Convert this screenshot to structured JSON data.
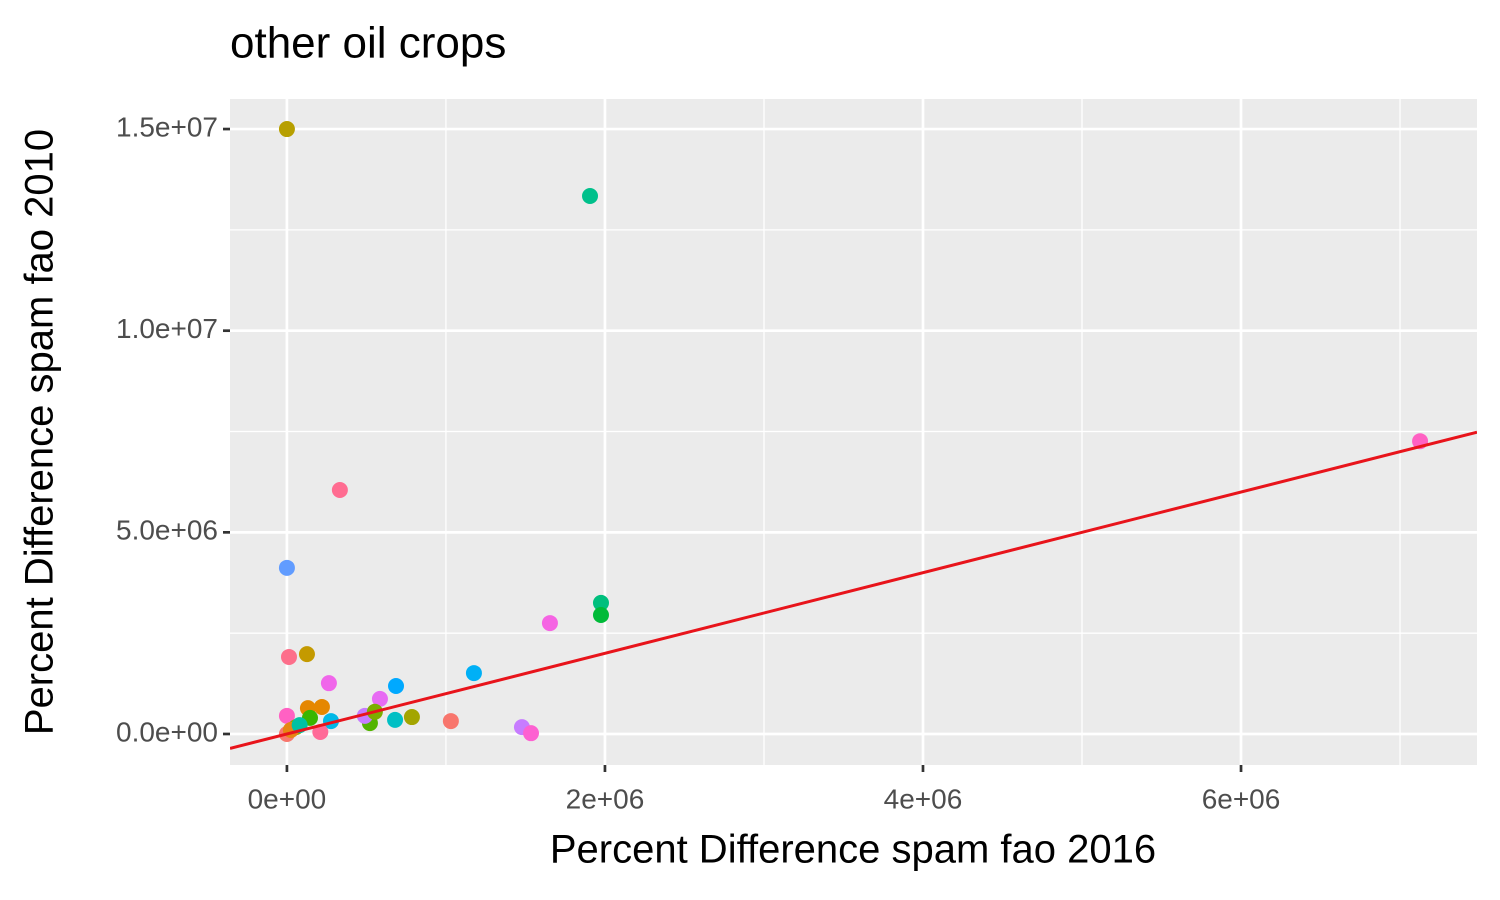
{
  "chart_data": {
    "type": "scatter",
    "title": "other oil crops",
    "x_label": "Percent Difference spam fao 2016",
    "y_label": "Percent Difference spam fao 2010",
    "xlim": [
      -358000,
      7484000
    ],
    "ylim": [
      -769000,
      15745000
    ],
    "xticks": [
      {
        "value": 0,
        "label": "0e+00"
      },
      {
        "value": 2000000,
        "label": "2e+06"
      },
      {
        "value": 4000000,
        "label": "4e+06"
      },
      {
        "value": 6000000,
        "label": "6e+06"
      }
    ],
    "yticks": [
      {
        "value": 0,
        "label": "0.0e+00"
      },
      {
        "value": 5000000,
        "label": "5.0e+06"
      },
      {
        "value": 10000000,
        "label": "1.0e+07"
      },
      {
        "value": 15000000,
        "label": "1.5e+07"
      }
    ],
    "x_minor_ticks": [
      1000000,
      3000000,
      5000000,
      7000000
    ],
    "y_minor_ticks": [
      2500000,
      7500000,
      12500000
    ],
    "grid": true,
    "x": [
      0,
      1906000,
      7126000,
      333000,
      0,
      1975000,
      1975000,
      1654000,
      13000,
      126000,
      264000,
      1176000,
      686000,
      585000,
      132000,
      220000,
      786000,
      1031000,
      680000,
      522000,
      490000,
      553000,
      1478000,
      1535000,
      277000,
      145000,
      0,
      210000,
      57000,
      0,
      25000,
      80000
    ],
    "values": [
      15000000,
      13340000,
      7260000,
      6050000,
      4120000,
      3250000,
      2950000,
      2750000,
      1910000,
      1980000,
      1260000,
      1510000,
      1190000,
      870000,
      640000,
      670000,
      420000,
      320000,
      350000,
      270000,
      450000,
      550000,
      170000,
      20000,
      320000,
      400000,
      450000,
      50000,
      170000,
      0,
      100000,
      220000
    ],
    "colors": [
      "#b79f00",
      "#00c08b",
      "#ff61c3",
      "#ff6c91",
      "#619cff",
      "#00bf7d",
      "#00ba38",
      "#f564e3",
      "#fd6f8b",
      "#c49a00",
      "#f066ea",
      "#00b0f6",
      "#00a9ff",
      "#e76bf3",
      "#e58700",
      "#e58700",
      "#a3a500",
      "#f8766d",
      "#00bfc4",
      "#53b400",
      "#c77cff",
      "#7cae00",
      "#c77cff",
      "#fd61d1",
      "#00b8e7",
      "#39b600",
      "#ff61c3",
      "#ff6a98",
      "#8fAA00",
      "#f8766d",
      "#e68613",
      "#00c1a3"
    ],
    "reference_line": {
      "slope": 1,
      "intercept": 0,
      "color": "#e8141b"
    }
  }
}
